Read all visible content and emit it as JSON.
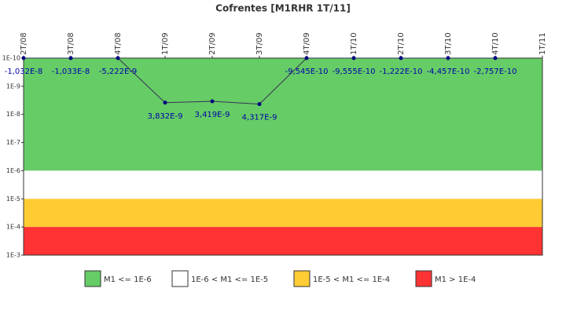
{
  "chart_data": {
    "type": "line",
    "title": "Cofrentes [M1RHR 1T/11]",
    "categories": [
      "2T/08",
      "3T/08",
      "4T/08",
      "1T/09",
      "2T/09",
      "3T/09",
      "4T/09",
      "1T/10",
      "2T/10",
      "3T/10",
      "4T/10",
      "1T/11"
    ],
    "series": [
      {
        "color": "#000080",
        "values": [
          -1.032e-08,
          -1.033e-08,
          -5.222e-09,
          3.832e-09,
          3.419e-09,
          4.317e-09,
          -9.545e-10,
          -9.555e-10,
          -1.222e-10,
          -4.457e-10,
          -2.757e-10,
          null
        ],
        "value_labels": [
          "-1,032E-8",
          "-1,033E-8",
          "-5,222E-9",
          "3,832E-9",
          "3,419E-9",
          "4,317E-9",
          "-9,545E-10",
          "-9,555E-10",
          "-1,222E-10",
          "-4,457E-10",
          "-2,757E-10",
          null
        ]
      }
    ],
    "y_scale": "log",
    "y_inverted": true,
    "ylim": [
      1e-10,
      0.001
    ],
    "yticks": [
      {
        "value": 1e-10,
        "label": "1E-10"
      },
      {
        "value": 1e-09,
        "label": "1E-9"
      },
      {
        "value": 1e-08,
        "label": "1E-8"
      },
      {
        "value": 1e-07,
        "label": "1E-7"
      },
      {
        "value": 1e-06,
        "label": "1E-6"
      },
      {
        "value": 1e-05,
        "label": "1E-5"
      },
      {
        "value": 0.0001,
        "label": "1E-4"
      },
      {
        "value": 0.001,
        "label": "1E-3"
      }
    ],
    "bands": [
      {
        "from": 1e-10,
        "to": 1e-06,
        "color": "#66cc66",
        "label": "M1 <= 1E-6"
      },
      {
        "from": 1e-06,
        "to": 1e-05,
        "color": "#ffffff",
        "label": "1E-6 < M1 <= 1E-5"
      },
      {
        "from": 1e-05,
        "to": 0.0001,
        "color": "#ffcc33",
        "label": "1E-5 < M1 <= 1E-4"
      },
      {
        "from": 0.0001,
        "to": 0.001,
        "color": "#ff3333",
        "label": "M1 > 1E-4"
      }
    ]
  }
}
